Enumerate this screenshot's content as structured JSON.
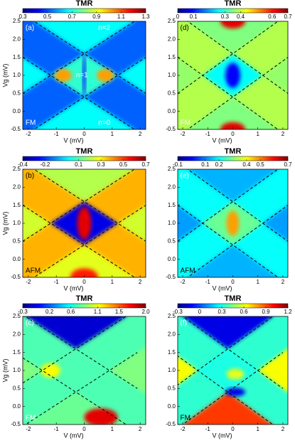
{
  "chart_data": [
    {
      "type": "heatmap",
      "title": "TMR",
      "xlabel": "V (mV)",
      "ylabel": "Vg (mV)",
      "annotations": [
        "(a)",
        "n=2",
        "n=1",
        "n=0",
        "FM"
      ],
      "xlim": [
        -2.2,
        2.2
      ],
      "ylim": [
        -0.5,
        2.5
      ],
      "xticks": [
        -2,
        -1,
        0,
        1,
        2
      ],
      "yticks": [
        -0.5,
        {
          "value": 0,
          "label": "0.0"
        },
        0.5,
        {
          "value": 1,
          "label": "1.0"
        },
        1.5,
        {
          "value": 2,
          "label": "2.0"
        },
        2.5
      ],
      "clim": [
        0.3,
        1.3
      ],
      "cticks": [
        0.3,
        0.5,
        0.7,
        0.9,
        1.1,
        1.3
      ]
    },
    {
      "type": "heatmap",
      "title": "TMR",
      "xlabel": "V (mV)",
      "annotations": [
        "(d)",
        "FM"
      ],
      "xlim": [
        -2.2,
        2.2
      ],
      "ylim": [
        -0.5,
        2.5
      ],
      "xticks": [
        -2,
        -1,
        0,
        1,
        2
      ],
      "yticks": [
        -0.5,
        {
          "value": 0,
          "label": "0.0"
        },
        0.5,
        {
          "value": 1,
          "label": "1.0"
        },
        1.5,
        {
          "value": 2,
          "label": "2.0"
        },
        2.5
      ],
      "clim": [
        0,
        0.7
      ],
      "cticks": [
        0,
        0.1,
        0.3,
        0.4,
        0.6,
        0.7
      ]
    },
    {
      "type": "heatmap",
      "title": "TMR",
      "xlabel": "V (mV)",
      "ylabel": "Vg (mV)",
      "annotations": [
        "(b)",
        "AFM"
      ],
      "xlim": [
        -2.2,
        2.2
      ],
      "ylim": [
        -0.5,
        2.5
      ],
      "xticks": [
        -2,
        -1,
        0,
        1,
        2
      ],
      "yticks": [
        -0.5,
        {
          "value": 0,
          "label": "0.0"
        },
        0.5,
        {
          "value": 1,
          "label": "1.0"
        },
        1.5,
        {
          "value": 2,
          "label": "2.0"
        },
        2.5
      ],
      "clim": [
        -0.4,
        0.7
      ],
      "cticks": [
        -0.4,
        -0.2,
        0.1,
        0.3,
        0.5,
        0.7
      ]
    },
    {
      "type": "heatmap",
      "title": "TMR",
      "xlabel": "V (mV)",
      "annotations": [
        "(e)",
        "AFM"
      ],
      "xlim": [
        -2.2,
        2.2
      ],
      "ylim": [
        -0.5,
        2.5
      ],
      "xticks": [
        -2,
        -1,
        0,
        1,
        2
      ],
      "yticks": [
        -0.5,
        {
          "value": 0,
          "label": "0.0"
        },
        0.5,
        {
          "value": 1,
          "label": "1.0"
        },
        1.5,
        {
          "value": 2,
          "label": "2.0"
        },
        2.5
      ],
      "clim": [
        -0.1,
        0.7
      ],
      "cticks": [
        -0.1,
        0.1,
        0.2,
        0.4,
        0.5,
        0.7
      ]
    },
    {
      "type": "heatmap",
      "title": "TMR",
      "xlabel": "V (mV)",
      "ylabel": "Vg (mV)",
      "annotations": [
        "(c)",
        "FM"
      ],
      "xlim": [
        -2.2,
        2.2
      ],
      "ylim": [
        -0.5,
        2.5
      ],
      "xticks": [
        -2,
        -1,
        0,
        1,
        2
      ],
      "yticks": [
        -0.5,
        {
          "value": 0,
          "label": "0.0"
        },
        0.5,
        {
          "value": 1,
          "label": "1.0"
        },
        1.5,
        {
          "value": 2,
          "label": "2.0"
        },
        2.5
      ],
      "clim": [
        -0.3,
        2.0
      ],
      "cticks": [
        -0.3,
        0.2,
        0.6,
        1.1,
        1.5,
        {
          "value": 2,
          "label": "2.0"
        }
      ]
    },
    {
      "type": "heatmap",
      "title": "TMR",
      "xlabel": "V (mV)",
      "annotations": [
        "(f)",
        "FM"
      ],
      "xlim": [
        -2.2,
        2.2
      ],
      "ylim": [
        -0.5,
        2.5
      ],
      "xticks": [
        -2,
        -1,
        0,
        1,
        2
      ],
      "yticks": [
        -0.5,
        {
          "value": 0,
          "label": "0.0"
        },
        0.5,
        {
          "value": 1,
          "label": "1.0"
        },
        1.5,
        {
          "value": 2,
          "label": "2.0"
        },
        2.5
      ],
      "clim": [
        -0.3,
        1.2
      ],
      "cticks": [
        -0.3,
        0,
        0.3,
        0.6,
        0.9,
        1.2
      ]
    }
  ]
}
